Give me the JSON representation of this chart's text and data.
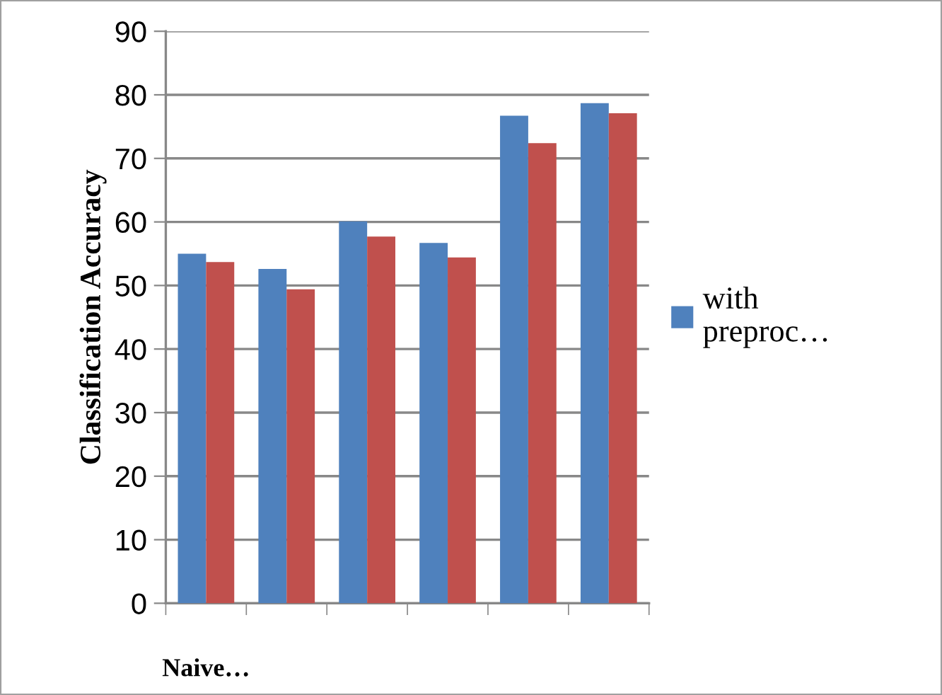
{
  "chart_data": {
    "type": "bar",
    "ylabel": "Classification Accuracy",
    "categories": [
      "Naive…",
      null,
      null,
      null,
      null,
      null
    ],
    "series": [
      {
        "name": "with\npreproc…",
        "color": "#4f81bd",
        "values": [
          55.0,
          52.6,
          60.1,
          56.7,
          76.7,
          78.7
        ]
      },
      {
        "color": "#c0504d",
        "values": [
          53.7,
          49.4,
          57.7,
          54.4,
          72.4,
          77.1
        ]
      }
    ],
    "ylim": [
      0,
      90
    ],
    "yticks": [
      0,
      10,
      20,
      30,
      40,
      50,
      60,
      70,
      80,
      90
    ],
    "grid": "y",
    "legend": "right"
  }
}
